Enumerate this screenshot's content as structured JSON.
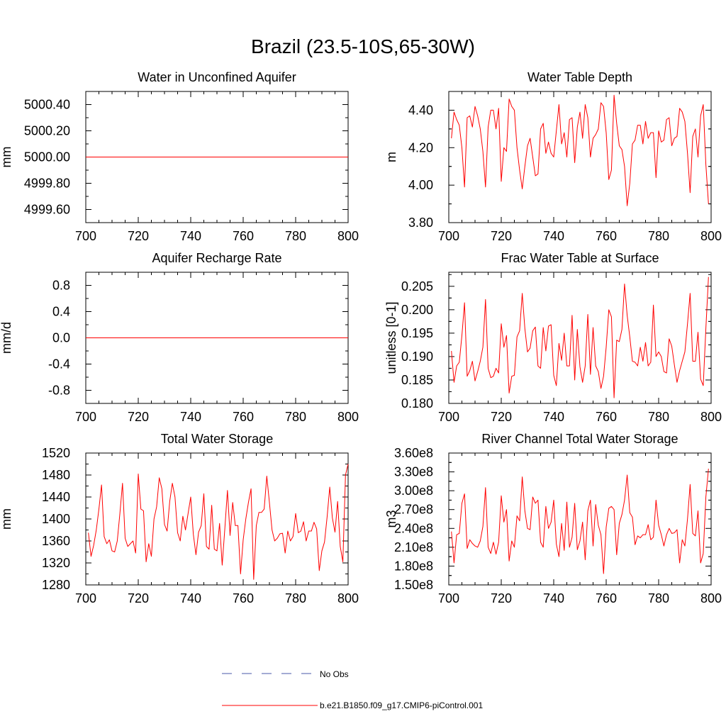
{
  "figure": {
    "title": "Brazil (23.5-10S,65-30W)",
    "legend": {
      "no_obs_label": "No Obs",
      "no_obs_color": "#4a5aa8",
      "model_label": "b.e21.B1850.f09_g17.CMIP6-piControl.001",
      "model_color": "#ff0000"
    }
  },
  "chart_data": [
    {
      "type": "line",
      "title": "Water in Unconfined Aquifer",
      "xlabel": "",
      "ylabel": "mm",
      "xlim": [
        700,
        800
      ],
      "ylim": [
        4999.5,
        5000.5
      ],
      "xticks": [
        700,
        720,
        740,
        760,
        780,
        800
      ],
      "xtick_labels": [
        "700",
        "720",
        "740",
        "760",
        "780",
        "800"
      ],
      "yticks": [
        4999.6,
        4999.8,
        5000.0,
        5000.2,
        5000.4
      ],
      "ytick_labels": [
        "4999.60",
        "4999.80",
        "5000.00",
        "5000.20",
        "5000.40"
      ],
      "color": "#ff0000",
      "x": [
        700,
        800
      ],
      "values": [
        5000.0,
        5000.0
      ]
    },
    {
      "type": "line",
      "title": "Water Table Depth",
      "xlabel": "",
      "ylabel": "m",
      "xlim": [
        700,
        800
      ],
      "ylim": [
        3.8,
        4.5
      ],
      "xticks": [
        700,
        720,
        740,
        760,
        780,
        800
      ],
      "xtick_labels": [
        "700",
        "720",
        "740",
        "760",
        "780",
        "800"
      ],
      "yticks": [
        3.8,
        4.0,
        4.2,
        4.4
      ],
      "ytick_labels": [
        "3.80",
        "4.00",
        "4.20",
        "4.40"
      ],
      "color": "#ff0000",
      "x_start": 701,
      "x_step": 1,
      "values": [
        4.25,
        4.39,
        4.35,
        4.32,
        4.2,
        3.99,
        4.36,
        4.37,
        4.31,
        4.42,
        4.37,
        4.3,
        4.18,
        3.99,
        4.31,
        4.4,
        4.4,
        4.3,
        4.41,
        4.02,
        4.2,
        4.18,
        4.46,
        4.42,
        4.4,
        4.2,
        4.08,
        3.98,
        4.1,
        4.21,
        4.25,
        4.15,
        4.05,
        4.06,
        4.3,
        4.33,
        4.17,
        4.23,
        4.17,
        4.15,
        4.29,
        4.43,
        4.22,
        4.28,
        4.15,
        4.35,
        4.36,
        4.12,
        4.31,
        4.39,
        4.25,
        4.43,
        4.36,
        4.15,
        4.25,
        4.27,
        4.3,
        4.44,
        4.42,
        4.28,
        4.03,
        4.08,
        4.48,
        4.33,
        4.21,
        4.19,
        4.1,
        3.89,
        4.01,
        4.22,
        4.24,
        4.32,
        4.32,
        4.22,
        4.34,
        4.25,
        4.28,
        4.28,
        4.04,
        4.29,
        4.23,
        4.24,
        4.35,
        4.36,
        4.21,
        4.25,
        4.26,
        4.41,
        4.39,
        4.34,
        4.17,
        3.96,
        4.26,
        4.3,
        4.15,
        4.37,
        4.43,
        4.11,
        3.9
      ]
    },
    {
      "type": "line",
      "title": "Aquifer Recharge Rate",
      "xlabel": "",
      "ylabel": "mm/d",
      "xlim": [
        700,
        800
      ],
      "ylim": [
        -1.0,
        1.0
      ],
      "xticks": [
        700,
        720,
        740,
        760,
        780,
        800
      ],
      "xtick_labels": [
        "700",
        "720",
        "740",
        "760",
        "780",
        "800"
      ],
      "yticks": [
        -0.8,
        -0.4,
        0.0,
        0.4,
        0.8
      ],
      "ytick_labels": [
        "-0.8",
        "-0.4",
        "0.0",
        "0.4",
        "0.8"
      ],
      "color": "#ff0000",
      "x": [
        700,
        800
      ],
      "values": [
        0.0,
        0.0
      ]
    },
    {
      "type": "line",
      "title": "Frac Water Table at Surface",
      "xlabel": "",
      "ylabel": "unitless [0-1]",
      "xlim": [
        700,
        800
      ],
      "ylim": [
        0.18,
        0.208
      ],
      "xticks": [
        700,
        720,
        740,
        760,
        780,
        800
      ],
      "xtick_labels": [
        "700",
        "720",
        "740",
        "760",
        "780",
        "800"
      ],
      "yticks": [
        0.18,
        0.185,
        0.19,
        0.195,
        0.2,
        0.205
      ],
      "ytick_labels": [
        "0.180",
        "0.185",
        "0.190",
        "0.195",
        "0.200",
        "0.205"
      ],
      "color": "#ff0000",
      "x_start": 701,
      "x_step": 1,
      "values": [
        0.1912,
        0.1845,
        0.188,
        0.1888,
        0.1945,
        0.2015,
        0.1858,
        0.187,
        0.189,
        0.1848,
        0.1868,
        0.189,
        0.192,
        0.2022,
        0.1875,
        0.1855,
        0.1858,
        0.1875,
        0.1865,
        0.197,
        0.192,
        0.1945,
        0.1822,
        0.1858,
        0.186,
        0.1942,
        0.1955,
        0.2035,
        0.196,
        0.191,
        0.1918,
        0.1955,
        0.1963,
        0.188,
        0.1875,
        0.1962,
        0.1912,
        0.1965,
        0.1968,
        0.186,
        0.1838,
        0.1928,
        0.1892,
        0.195,
        0.188,
        0.188,
        0.1988,
        0.185,
        0.1958,
        0.1878,
        0.1845,
        0.188,
        0.199,
        0.1862,
        0.1962,
        0.188,
        0.1868,
        0.1832,
        0.1858,
        0.192,
        0.2,
        0.1985,
        0.1812,
        0.1935,
        0.1932,
        0.1958,
        0.2055,
        0.1988,
        0.1942,
        0.189,
        0.1888,
        0.188,
        0.192,
        0.189,
        0.193,
        0.188,
        0.1888,
        0.201,
        0.19,
        0.191,
        0.19,
        0.1868,
        0.1865,
        0.1938,
        0.1922,
        0.1882,
        0.1845,
        0.187,
        0.189,
        0.191,
        0.197,
        0.2035,
        0.189,
        0.189,
        0.1952,
        0.1852,
        0.1838,
        0.196,
        0.207
      ]
    },
    {
      "type": "line",
      "title": "Total Water Storage",
      "xlabel": "",
      "ylabel": "mm",
      "xlim": [
        700,
        800
      ],
      "ylim": [
        1280,
        1520
      ],
      "xticks": [
        700,
        720,
        740,
        760,
        780,
        800
      ],
      "xtick_labels": [
        "700",
        "720",
        "740",
        "760",
        "780",
        "800"
      ],
      "yticks": [
        1280,
        1320,
        1360,
        1400,
        1440,
        1480,
        1520
      ],
      "ytick_labels": [
        "1280",
        "1320",
        "1360",
        "1400",
        "1440",
        "1480",
        "1520"
      ],
      "color": "#ff0000",
      "x_start": 701,
      "x_step": 1,
      "values": [
        1375,
        1332,
        1352,
        1380,
        1418,
        1462,
        1368,
        1355,
        1362,
        1342,
        1340,
        1360,
        1410,
        1465,
        1365,
        1350,
        1355,
        1360,
        1338,
        1482,
        1418,
        1415,
        1322,
        1355,
        1332,
        1400,
        1422,
        1475,
        1455,
        1390,
        1378,
        1432,
        1465,
        1440,
        1375,
        1360,
        1405,
        1380,
        1410,
        1440,
        1372,
        1335,
        1376,
        1388,
        1446,
        1350,
        1345,
        1425,
        1345,
        1342,
        1392,
        1316,
        1382,
        1452,
        1370,
        1430,
        1388,
        1388,
        1300,
        1362,
        1400,
        1430,
        1455,
        1290,
        1388,
        1412,
        1412,
        1418,
        1478,
        1430,
        1380,
        1360,
        1365,
        1373,
        1374,
        1338,
        1378,
        1360,
        1368,
        1410,
        1375,
        1378,
        1395,
        1360,
        1378,
        1378,
        1394,
        1382,
        1306,
        1342,
        1358,
        1404,
        1458,
        1402,
        1376,
        1432,
        1350,
        1322,
        1480,
        1500
      ]
    },
    {
      "type": "line",
      "title": "River Channel Total Water Storage",
      "xlabel": "",
      "ylabel": "m3",
      "xlim": [
        700,
        800
      ],
      "ylim": [
        150000000,
        360000000
      ],
      "xticks": [
        700,
        720,
        740,
        760,
        780,
        800
      ],
      "xtick_labels": [
        "700",
        "720",
        "740",
        "760",
        "780",
        "800"
      ],
      "yticks": [
        150000000,
        180000000,
        210000000,
        240000000,
        270000000,
        300000000,
        330000000,
        360000000
      ],
      "ytick_labels": [
        "1.50e8",
        "1.80e8",
        "2.10e8",
        "2.40e8",
        "2.70e8",
        "3.00e8",
        "3.30e8",
        "3.60e8"
      ],
      "color": "#ff0000",
      "x_start": 701,
      "x_step": 1,
      "values": [
        235000000,
        185000000,
        230000000,
        232000000,
        280000000,
        295000000,
        208000000,
        222000000,
        216000000,
        212000000,
        210000000,
        220000000,
        243000000,
        305000000,
        210000000,
        200000000,
        218000000,
        199000000,
        218000000,
        292000000,
        250000000,
        270000000,
        188000000,
        220000000,
        210000000,
        260000000,
        252000000,
        322000000,
        268000000,
        240000000,
        238000000,
        290000000,
        280000000,
        285000000,
        218000000,
        210000000,
        275000000,
        240000000,
        250000000,
        285000000,
        215000000,
        195000000,
        248000000,
        205000000,
        282000000,
        210000000,
        226000000,
        280000000,
        206000000,
        220000000,
        250000000,
        190000000,
        268000000,
        285000000,
        212000000,
        278000000,
        245000000,
        230000000,
        168000000,
        242000000,
        272000000,
        275000000,
        270000000,
        198000000,
        248000000,
        262000000,
        285000000,
        325000000,
        265000000,
        258000000,
        214000000,
        228000000,
        225000000,
        230000000,
        230000000,
        246000000,
        222000000,
        226000000,
        285000000,
        245000000,
        230000000,
        212000000,
        230000000,
        240000000,
        232000000,
        233000000,
        238000000,
        185000000,
        222000000,
        212000000,
        255000000,
        310000000,
        232000000,
        228000000,
        268000000,
        185000000,
        200000000,
        290000000,
        335000000
      ]
    }
  ]
}
